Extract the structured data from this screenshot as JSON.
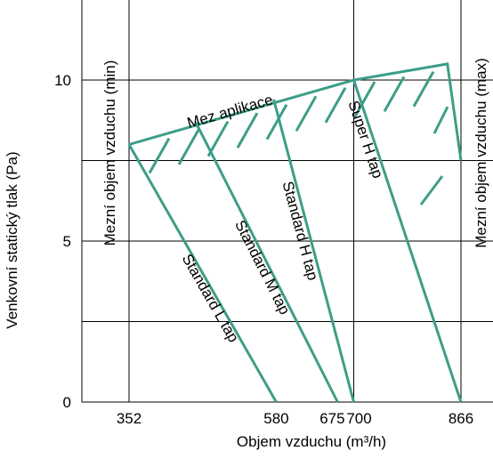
{
  "chart_data": {
    "type": "line",
    "title": "",
    "xlabel": "Objem vzduchu (m³/h)",
    "ylabel": "Venkovní statický tlak (Pa)",
    "x_ticks": [
      352,
      580,
      675,
      700,
      866
    ],
    "x_tick_labels": [
      "352",
      "580",
      "675",
      "700",
      "866"
    ],
    "y_ticks": [
      0,
      5,
      10
    ],
    "y_tick_labels": [
      "0",
      "5",
      "10"
    ],
    "xlim": [
      230,
      875
    ],
    "ylim": [
      0,
      12.5
    ],
    "grid": true,
    "series": [
      {
        "name": "Standard L tap",
        "points": [
          [
            352,
            8.0
          ],
          [
            580,
            0
          ]
        ]
      },
      {
        "name": "Standard M tap",
        "points": [
          [
            455,
            8.7
          ],
          [
            675,
            0
          ]
        ]
      },
      {
        "name": "Standard H tap",
        "points": [
          [
            576,
            9.4
          ],
          [
            700,
            0
          ]
        ]
      },
      {
        "name": "Super H tap",
        "points": [
          [
            700,
            10.0
          ],
          [
            866,
            0
          ]
        ]
      }
    ],
    "limit": {
      "name": "Mez aplikace",
      "points": [
        [
          352,
          8.0
        ],
        [
          700,
          10.0
        ],
        [
          845,
          10.5
        ],
        [
          866,
          7.5
        ]
      ]
    },
    "annotations": {
      "min_label": "Mezní objem vzduchu (min)",
      "max_label": "Mezní objem vzduchu (max)"
    },
    "colors": {
      "curve": "#3d9e88",
      "grid": "#000000"
    }
  }
}
